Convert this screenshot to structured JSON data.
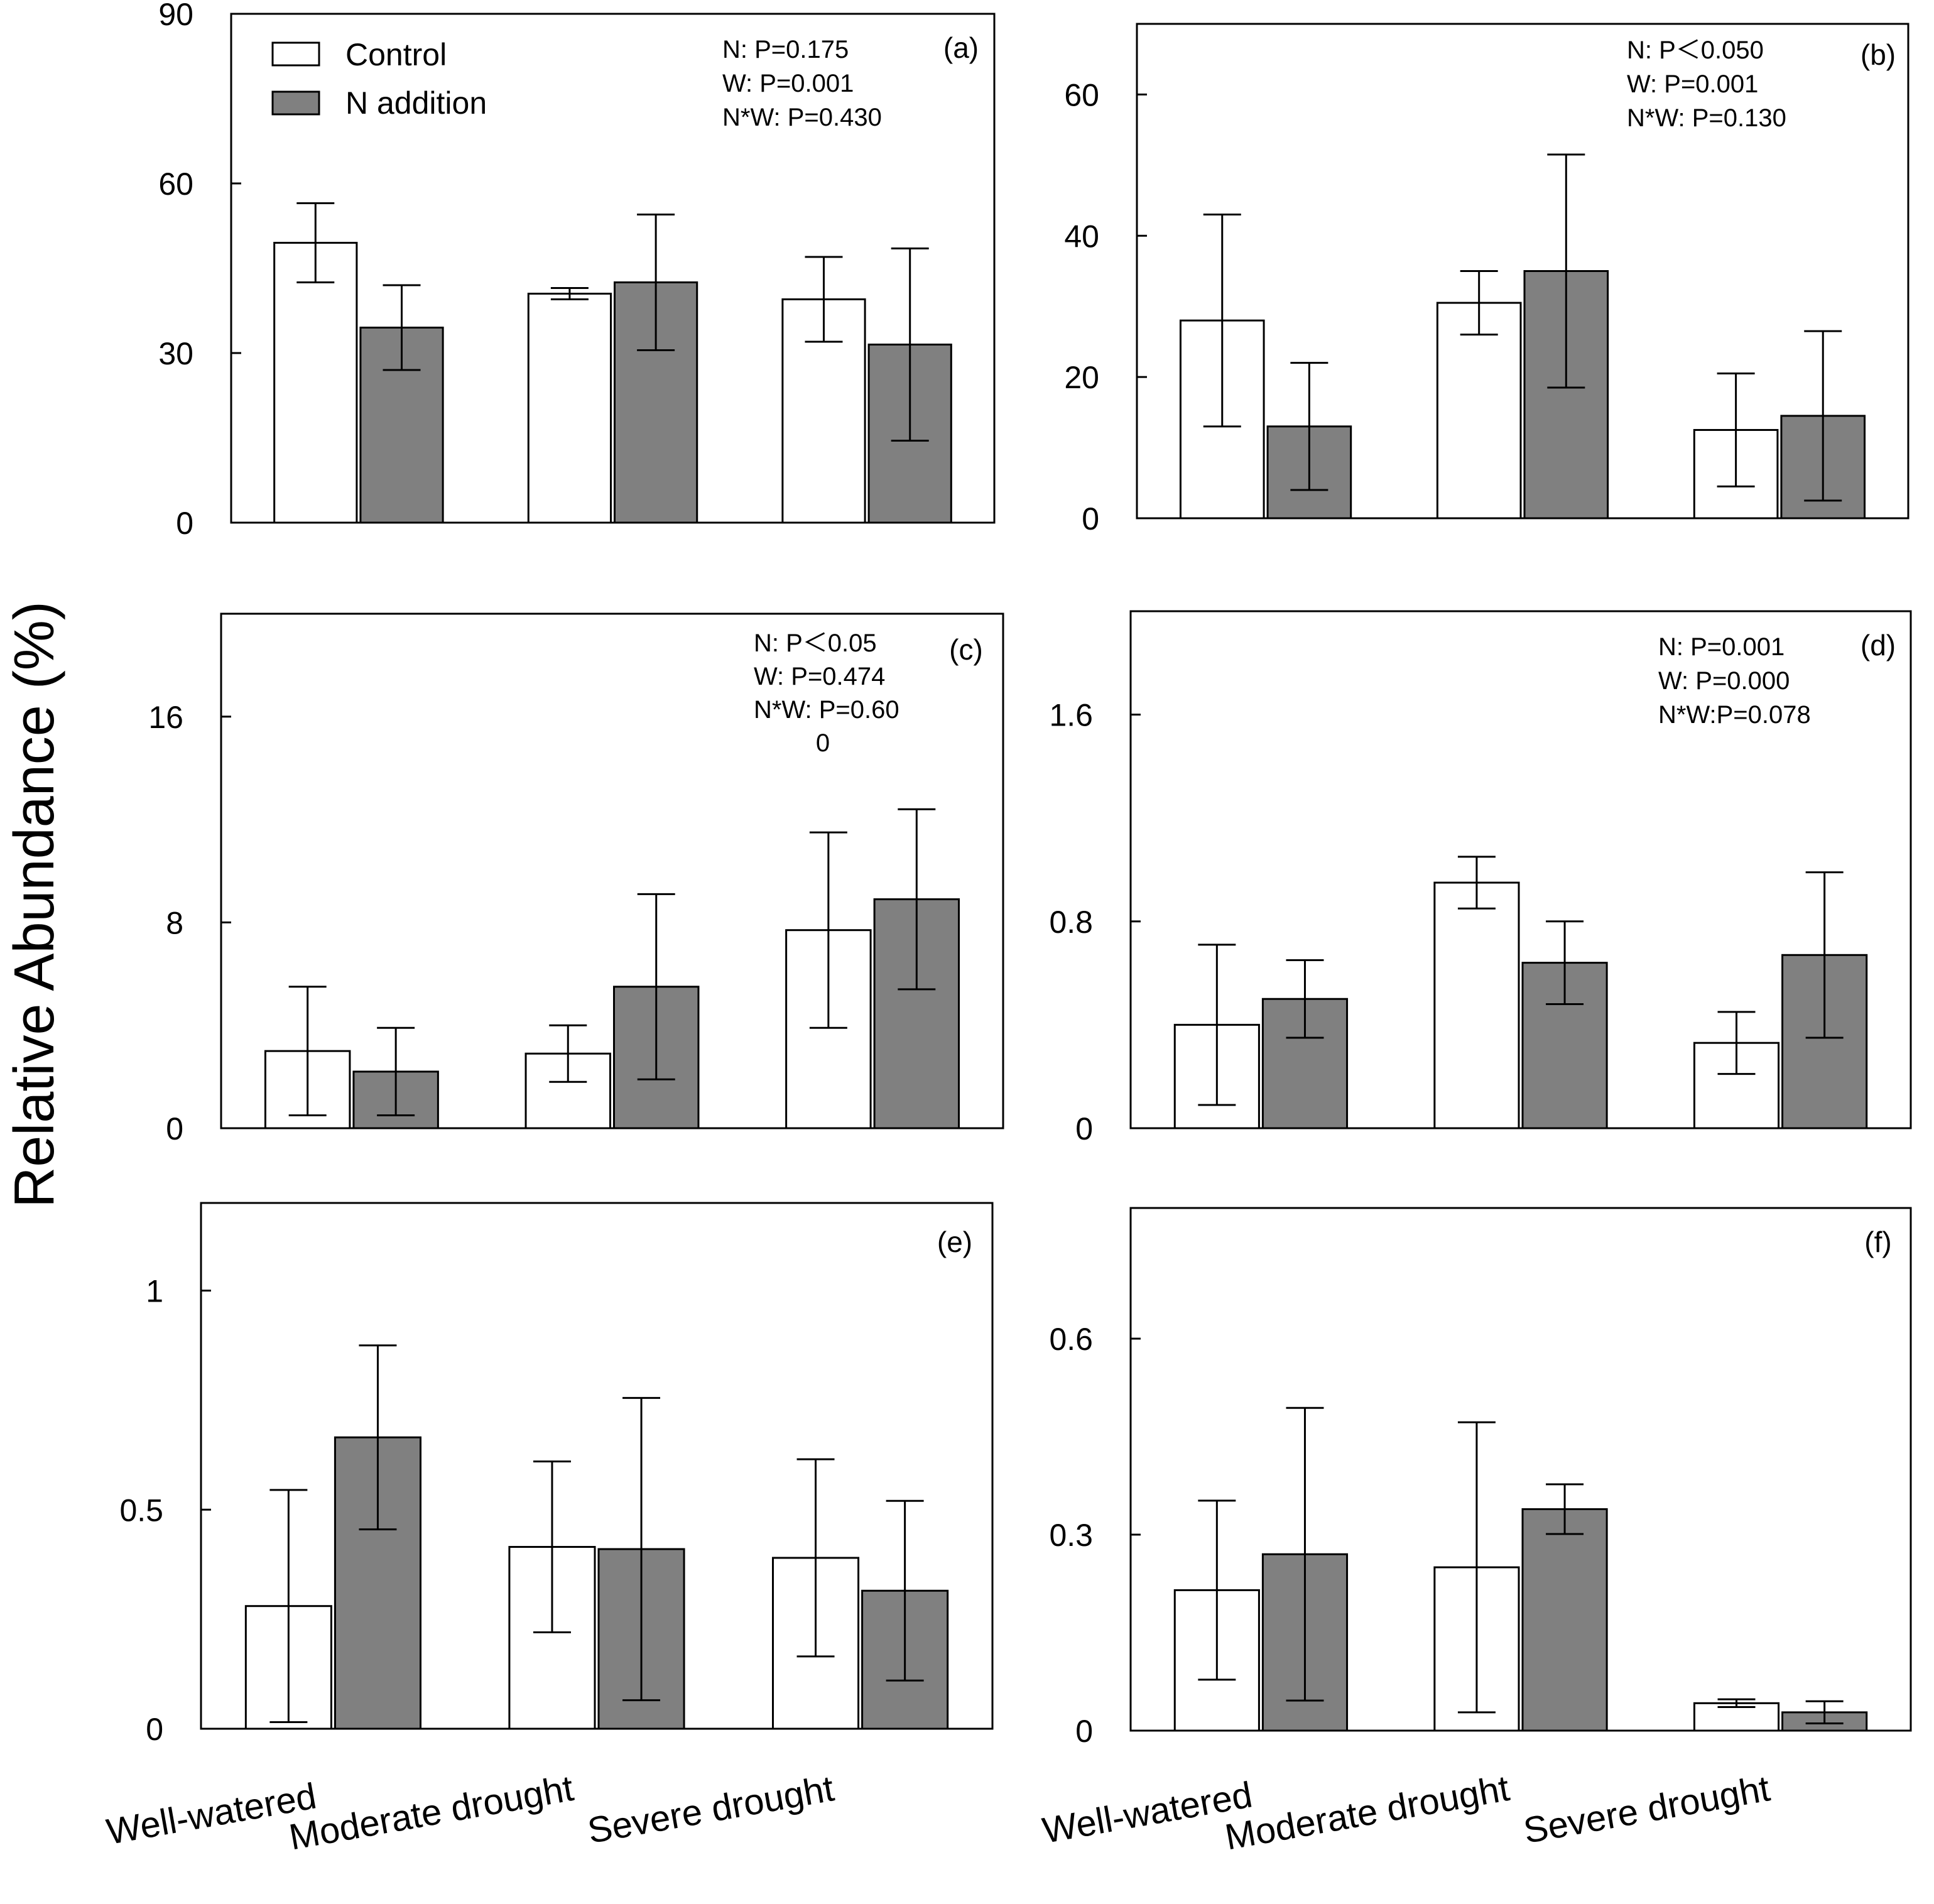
{
  "figure": {
    "y_axis_label": "Relative  Abundance (%)",
    "legend": [
      {
        "name": "Control",
        "color": "#ffffff"
      },
      {
        "name": "N addition",
        "color": "#808080"
      }
    ],
    "category_labels": [
      "Well-watered",
      "Moderate drought",
      "Severe drought"
    ]
  },
  "chart_data": [
    {
      "type": "bar",
      "panel": "(a)",
      "categories": [
        "Well-watered",
        "Moderate drought",
        "Severe drought"
      ],
      "series": [
        {
          "name": "Control",
          "values": [
            49.5,
            40.5,
            39.5
          ],
          "errors": [
            7,
            1,
            7.5
          ]
        },
        {
          "name": "N addition",
          "values": [
            34.5,
            42.5,
            31.5
          ],
          "errors": [
            7.5,
            12,
            17
          ]
        }
      ],
      "ylim": [
        0,
        90
      ],
      "yticks": [
        0,
        30,
        60,
        90
      ],
      "stats": [
        "N: P=0.175",
        "W: P=0.001",
        "N*W: P=0.430"
      ]
    },
    {
      "type": "bar",
      "panel": "(b)",
      "categories": [
        "Well-watered",
        "Moderate drought",
        "Severe drought"
      ],
      "series": [
        {
          "name": "Control",
          "values": [
            28,
            30.5,
            12.5
          ],
          "errors": [
            15,
            4.5,
            8
          ]
        },
        {
          "name": "N addition",
          "values": [
            13,
            35,
            14.5
          ],
          "errors": [
            9,
            16.5,
            12
          ]
        }
      ],
      "ylim": [
        0,
        70
      ],
      "yticks": [
        0,
        20,
        40,
        60
      ],
      "stats": [
        "N: P＜0.050",
        "W: P=0.001",
        "N*W: P=0.130"
      ]
    },
    {
      "type": "bar",
      "panel": "(c)",
      "categories": [
        "Well-watered",
        "Moderate drought",
        "Severe drought"
      ],
      "series": [
        {
          "name": "Control",
          "values": [
            3,
            2.9,
            7.7
          ],
          "errors": [
            2.5,
            1.1,
            3.8
          ]
        },
        {
          "name": "N addition",
          "values": [
            2.2,
            5.5,
            8.9
          ],
          "errors": [
            1.7,
            3.6,
            3.5
          ]
        }
      ],
      "ylim": [
        0,
        20
      ],
      "yticks": [
        0,
        8,
        16
      ],
      "stats": [
        "N: P＜0.05",
        "W: P=0.474",
        "N*W:   P=0.60",
        "0"
      ]
    },
    {
      "type": "bar",
      "panel": "(d)",
      "categories": [
        "Well-watered",
        "Moderate drought",
        "Severe drought"
      ],
      "series": [
        {
          "name": "Control",
          "values": [
            0.4,
            0.95,
            0.33
          ],
          "errors": [
            0.31,
            0.1,
            0.12
          ]
        },
        {
          "name": "N addition",
          "values": [
            0.5,
            0.64,
            0.67
          ],
          "errors": [
            0.15,
            0.16,
            0.32
          ]
        }
      ],
      "ylim": [
        0,
        2.0
      ],
      "yticks": [
        0,
        0.8,
        1.6
      ],
      "stats": [
        "N: P=0.001",
        "W: P=0.000",
        "N*W:P=0.078"
      ]
    },
    {
      "type": "bar",
      "panel": "(e)",
      "categories": [
        "Well-watered",
        "Moderate drought",
        "Severe drought"
      ],
      "series": [
        {
          "name": "Control",
          "values": [
            0.28,
            0.415,
            0.39
          ],
          "errors": [
            0.265,
            0.195,
            0.225
          ]
        },
        {
          "name": "N addition",
          "values": [
            0.665,
            0.41,
            0.315
          ],
          "errors": [
            0.21,
            0.345,
            0.205
          ]
        }
      ],
      "ylim": [
        0,
        1.2
      ],
      "yticks": [
        0,
        0.5,
        1
      ],
      "stats": []
    },
    {
      "type": "bar",
      "panel": "(f)",
      "categories": [
        "Well-watered",
        "Moderate drought",
        "Severe drought"
      ],
      "series": [
        {
          "name": "Control",
          "values": [
            0.215,
            0.25,
            0.042
          ],
          "errors": [
            0.137,
            0.222,
            0.006
          ]
        },
        {
          "name": "N addition",
          "values": [
            0.27,
            0.339,
            0.028
          ],
          "errors": [
            0.224,
            0.038,
            0.017
          ]
        }
      ],
      "ylim": [
        0,
        0.8
      ],
      "yticks": [
        0,
        0.3,
        0.6
      ],
      "stats": []
    }
  ]
}
